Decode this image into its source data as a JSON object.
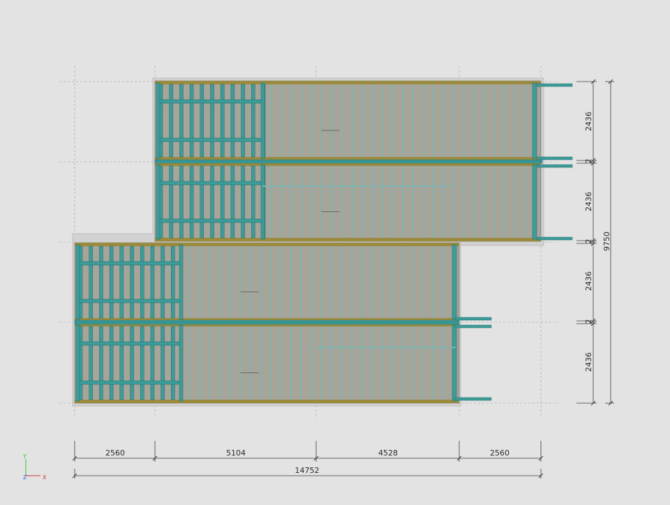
{
  "drawing": {
    "horizontal_dimensions": [
      "2560",
      "5104",
      "4528",
      "2560"
    ],
    "overall_width": "14752",
    "vertical_dimensions": [
      "2436",
      "2436",
      "2436",
      "2436"
    ],
    "gap_dimensions": [
      "2",
      "2",
      "2"
    ],
    "overall_height": "9750"
  },
  "axes_triad": {
    "y": "Y",
    "z": "Z",
    "x": "X"
  },
  "colors": {
    "background": "#e3e3e3",
    "panel": "#a7a499",
    "timber": "#3d9c99",
    "timber_stroke": "#1e6b69",
    "plate": "#9a8b3e",
    "dim_line": "#3a3a3a",
    "grid": "#9a9a9a"
  }
}
